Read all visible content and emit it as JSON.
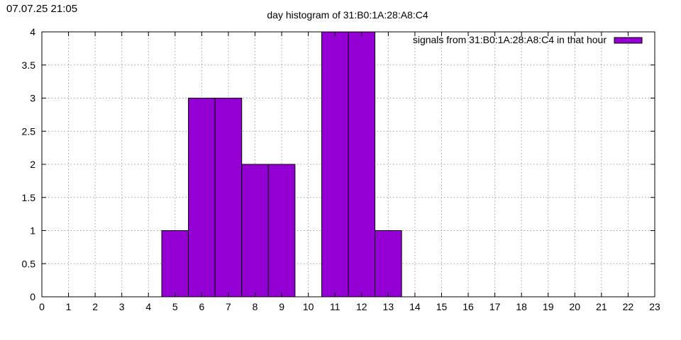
{
  "timestamp": "07.07.25 21:05",
  "chart_data": {
    "type": "bar",
    "title": "day histogram of 31:B0:1A:28:A8:C4",
    "xlabel": "",
    "ylabel": "",
    "xlim": [
      0,
      23
    ],
    "ylim": [
      0,
      4
    ],
    "xticks": [
      0,
      1,
      2,
      3,
      4,
      5,
      6,
      7,
      8,
      9,
      10,
      11,
      12,
      13,
      14,
      15,
      16,
      17,
      18,
      19,
      20,
      21,
      22,
      23
    ],
    "yticks": [
      0,
      0.5,
      1,
      1.5,
      2,
      2.5,
      3,
      3.5,
      4
    ],
    "grid": true,
    "legend_position": "top-right",
    "bar_color": "#9400d3",
    "series": [
      {
        "name": "signals from 31:B0:1A:28:A8:C4 in that hour",
        "x": [
          5,
          6,
          7,
          8,
          9,
          11,
          12,
          13
        ],
        "values": [
          1,
          3,
          3,
          2,
          2,
          4,
          4,
          1
        ]
      }
    ]
  }
}
